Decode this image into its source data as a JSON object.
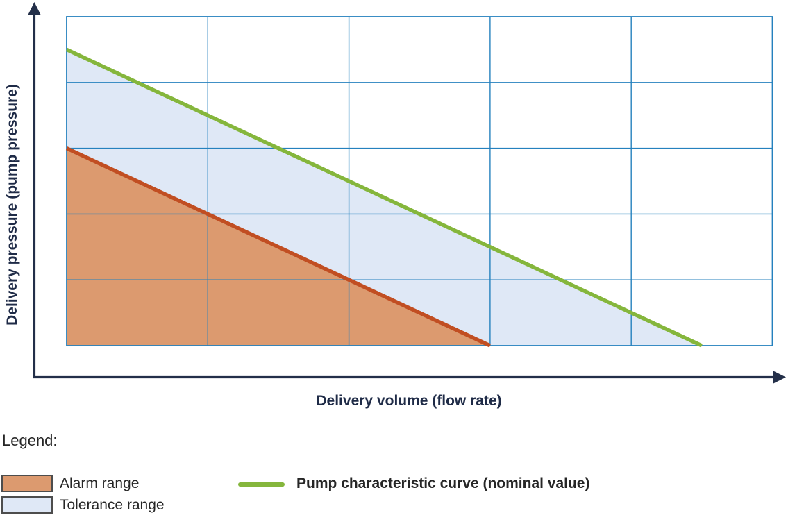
{
  "colors": {
    "axis": "#232F49",
    "grid": "#2581BE",
    "alarm_fill": "#DC9A6F",
    "alarm_line": "#C14E22",
    "tolerance_fill": "#DFE8F6",
    "nominal_line": "#85B63C",
    "axis_label_text": "#1F2B47",
    "legend_text": "#262626",
    "swatch_border": "#4D4D4D"
  },
  "axes": {
    "x_label": "Delivery volume (flow rate)",
    "y_label": "Delivery pressure (pump pressure)"
  },
  "legend": {
    "title": "Legend:",
    "items": [
      {
        "swatch": "alarm-fill",
        "label": "Alarm range"
      },
      {
        "swatch": "tolerance-fill",
        "label": "Tolerance range"
      },
      {
        "swatch": "nominal-line",
        "label": "Pump characteristic curve (nominal value)"
      }
    ]
  },
  "chart_data": {
    "type": "area",
    "title": "",
    "xlabel": "Delivery volume (flow rate)",
    "ylabel": "Delivery pressure (pump pressure)",
    "x_range": [
      0,
      5
    ],
    "y_range": [
      0,
      5
    ],
    "tick_labels": [],
    "grid": "on",
    "grid_divisions": {
      "x": 5,
      "y": 5
    },
    "legend_position": "bottom-left",
    "series": [
      {
        "id": "tolerance-range",
        "name": "Tolerance range",
        "kind": "area",
        "color": "#DFE8F6",
        "polygon": [
          [
            0,
            3
          ],
          [
            0,
            4.5
          ],
          [
            4.5,
            0
          ],
          [
            3,
            0
          ]
        ]
      },
      {
        "id": "alarm-range",
        "name": "Alarm range",
        "kind": "area",
        "color": "#DC9A6F",
        "polygon": [
          [
            0,
            0
          ],
          [
            0,
            3
          ],
          [
            3,
            0
          ]
        ]
      },
      {
        "id": "alarm-boundary",
        "name": "Alarm range boundary",
        "kind": "line",
        "color": "#C14E22",
        "points": [
          [
            0,
            3
          ],
          [
            3,
            0
          ]
        ]
      },
      {
        "id": "nominal-curve",
        "name": "Pump characteristic curve (nominal value)",
        "kind": "line",
        "color": "#85B63C",
        "points": [
          [
            0,
            4.5
          ],
          [
            4.5,
            0
          ]
        ]
      }
    ]
  }
}
